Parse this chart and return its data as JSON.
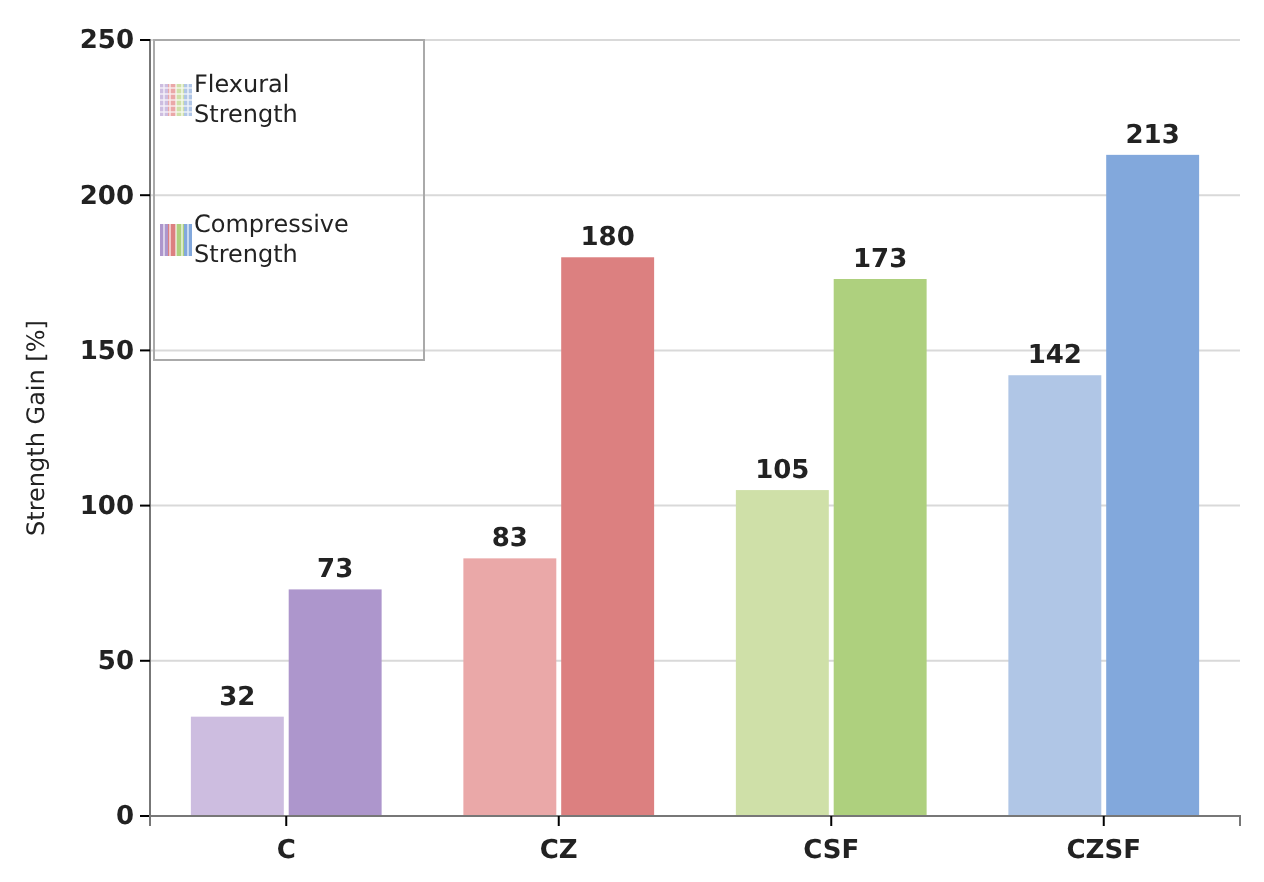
{
  "chart_data": {
    "type": "bar",
    "ylabel": "Strength Gain [%]",
    "categories": [
      "C",
      "CZ",
      "CSF",
      "CZSF"
    ],
    "series": [
      {
        "name": "Flexural Strength",
        "colors": [
          "#cdbde0",
          "#eaa8a8",
          "#cfe0a8",
          "#b0c6e6"
        ],
        "values": [
          32,
          83,
          105,
          142
        ]
      },
      {
        "name": "Compressive Strength",
        "colors": [
          "#ad96cc",
          "#dc8080",
          "#aed07e",
          "#82a8dc"
        ],
        "values": [
          73,
          180,
          173,
          213
        ]
      }
    ],
    "ylim": [
      0,
      250
    ],
    "yticks": [
      0,
      50,
      100,
      150,
      200,
      250
    ],
    "grid": "y",
    "legend": "top left",
    "data_labels": true
  }
}
